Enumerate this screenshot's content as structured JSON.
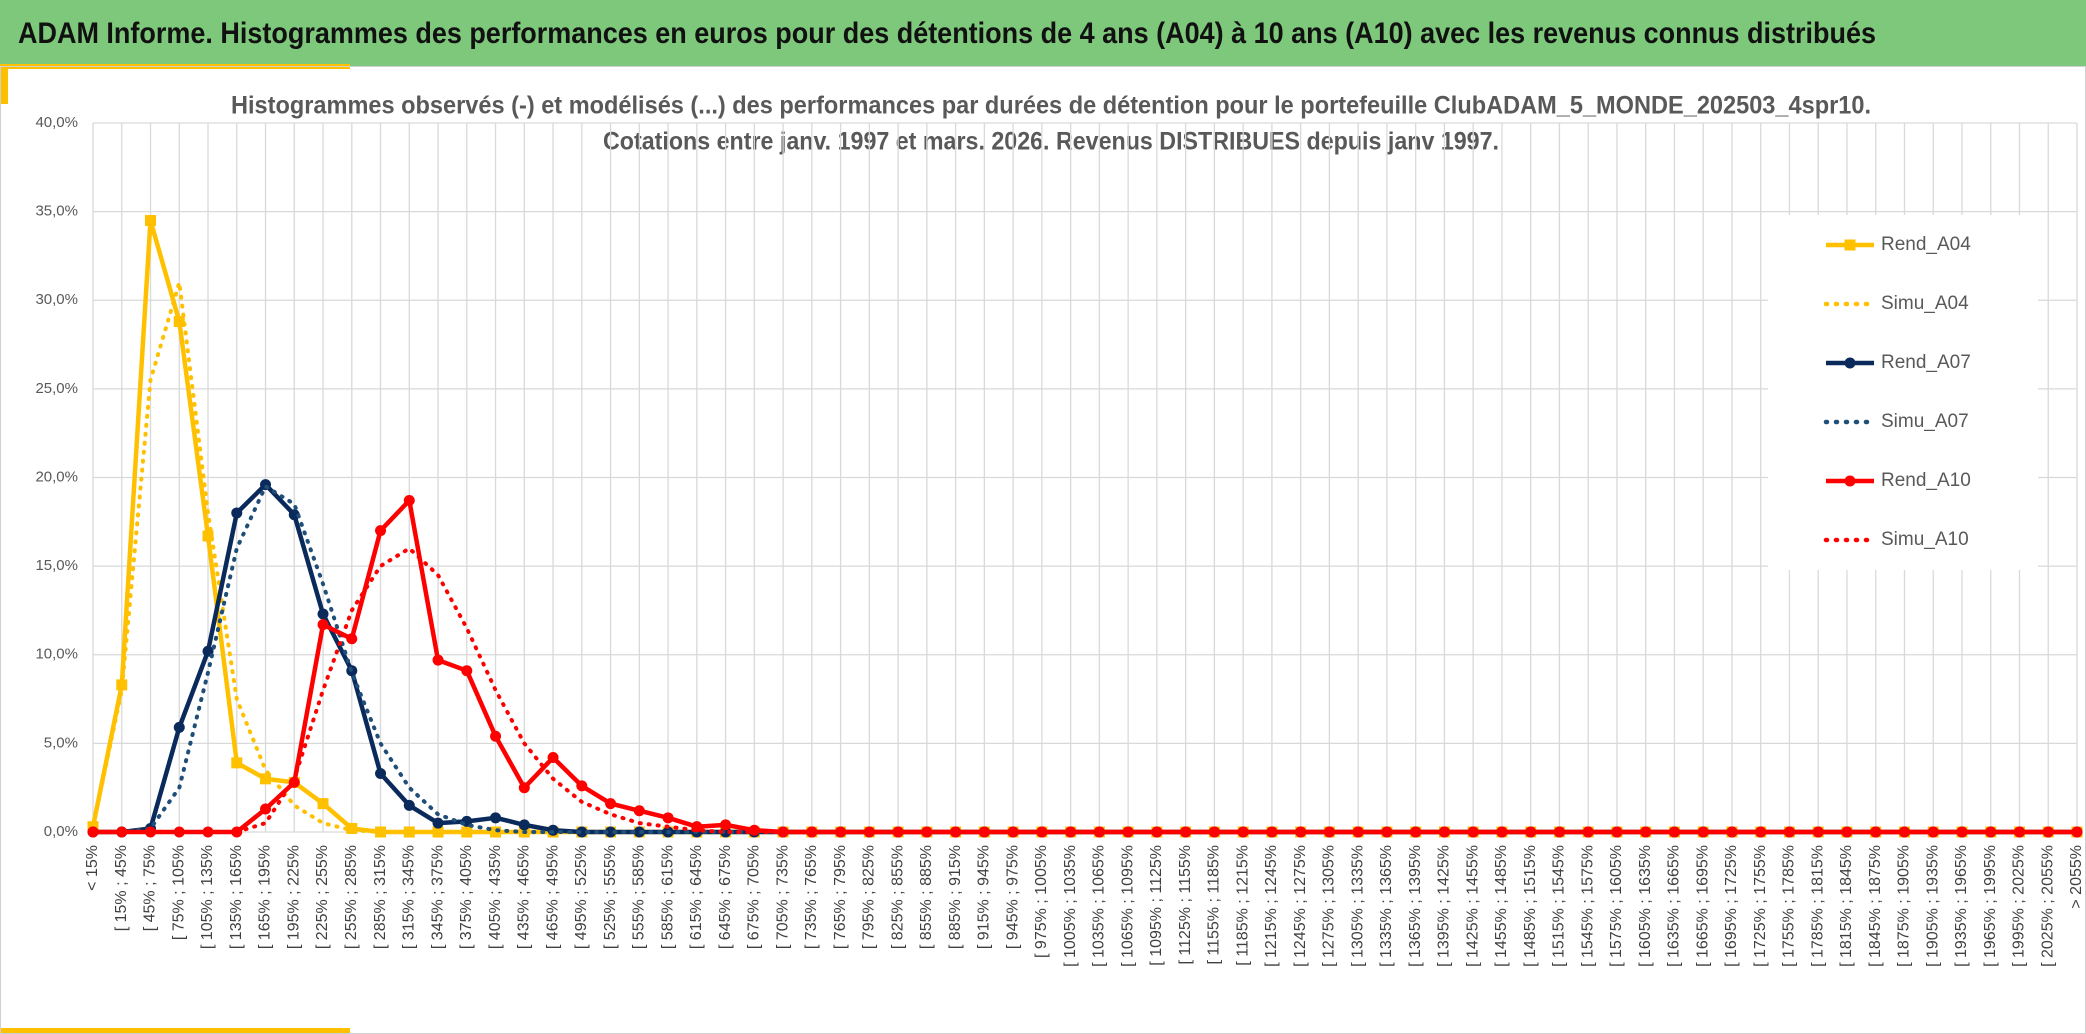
{
  "header": {
    "title": "ADAM Informe. Histogrammes des performances en euros pour des détentions de 4 ans (A04) à 10 ans (A10) avec les revenus connus distribués"
  },
  "chart_data": {
    "type": "line",
    "title": [
      "Histogrammes observés (-) et modélisés (...) des performances par durées de détention pour le portefeuille ClubADAM_5_MONDE_202503_4spr10.",
      "Cotations entre janv. 1997 et mars. 2026. Revenus DISTRIBUES depuis janv 1997."
    ],
    "categories": [
      "< 15%",
      "[ 15% ; 45%",
      "[ 45% ; 75%",
      "[ 75% ; 105%",
      "[ 105% ; 135%",
      "[ 135% ; 165%",
      "[ 165% ; 195%",
      "[ 195% ; 225%",
      "[ 225% ; 255%",
      "[ 255% ; 285%",
      "[ 285% ; 315%",
      "[ 315% ; 345%",
      "[ 345% ; 375%",
      "[ 375% ; 405%",
      "[ 405% ; 435%",
      "[ 435% ; 465%",
      "[ 465% ; 495%",
      "[ 495% ; 525%",
      "[ 525% ; 555%",
      "[ 555% ; 585%",
      "[ 585% ; 615%",
      "[ 615% ; 645%",
      "[ 645% ; 675%",
      "[ 675% ; 705%",
      "[ 705% ; 735%",
      "[ 735% ; 765%",
      "[ 765% ; 795%",
      "[ 795% ; 825%",
      "[ 825% ; 855%",
      "[ 855% ; 885%",
      "[ 885% ; 915%",
      "[ 915% ; 945%",
      "[ 945% ; 975%",
      "[ 975% ; 1005%",
      "[ 1005% ; 1035%",
      "[ 1035% ; 1065%",
      "[ 1065% ; 1095%",
      "[ 1095% ; 1125%",
      "[ 1125% ; 1155%",
      "[ 1155% ; 1185%",
      "[ 1185% ; 1215%",
      "[ 1215% ; 1245%",
      "[ 1245% ; 1275%",
      "[ 1275% ; 1305%",
      "[ 1305% ; 1335%",
      "[ 1335% ; 1365%",
      "[ 1365% ; 1395%",
      "[ 1395% ; 1425%",
      "[ 1425% ; 1455%",
      "[ 1455% ; 1485%",
      "[ 1485% ; 1515%",
      "[ 1515% ; 1545%",
      "[ 1545% ; 1575%",
      "[ 1575% ; 1605%",
      "[ 1605% ; 1635%",
      "[ 1635% ; 1665%",
      "[ 1665% ; 1695%",
      "[ 1695% ; 1725%",
      "[ 1725% ; 1755%",
      "[ 1755% ; 1785%",
      "[ 1785% ; 1815%",
      "[ 1815% ; 1845%",
      "[ 1845% ; 1875%",
      "[ 1875% ; 1905%",
      "[ 1905% ; 1935%",
      "[ 1935% ; 1965%",
      "[ 1965% ; 1995%",
      "[ 1995% ; 2025%",
      "[ 2025% ; 2055%",
      "> 2055%"
    ],
    "series": [
      {
        "name": "Rend_A04",
        "color": "#ffc000",
        "dash": "solid",
        "marker": "square",
        "values": [
          0.3,
          8.3,
          34.5,
          28.8,
          16.7,
          3.9,
          3.0,
          2.8,
          1.6,
          0.2,
          0,
          0,
          0,
          0,
          0,
          0,
          0,
          0,
          0,
          0,
          0,
          0,
          0,
          0,
          0,
          0,
          0,
          0,
          0,
          0,
          0,
          0,
          0,
          0,
          0,
          0,
          0,
          0,
          0,
          0,
          0,
          0,
          0,
          0,
          0,
          0,
          0,
          0,
          0,
          0,
          0,
          0,
          0,
          0,
          0,
          0,
          0,
          0,
          0,
          0,
          0,
          0,
          0,
          0,
          0,
          0,
          0,
          0,
          0,
          0
        ]
      },
      {
        "name": "Simu_A04",
        "color": "#ffc000",
        "dash": "dot",
        "marker": null,
        "values": [
          0.3,
          8.0,
          25.5,
          31.0,
          18.0,
          7.5,
          3.5,
          1.5,
          0.5,
          0.1,
          0,
          0,
          0,
          0,
          0,
          0,
          0,
          0,
          0,
          0,
          0,
          0,
          0,
          0,
          0,
          0,
          0,
          0,
          0,
          0,
          0,
          0,
          0,
          0,
          0,
          0,
          0,
          0,
          0,
          0,
          0,
          0,
          0,
          0,
          0,
          0,
          0,
          0,
          0,
          0,
          0,
          0,
          0,
          0,
          0,
          0,
          0,
          0,
          0,
          0,
          0,
          0,
          0,
          0,
          0,
          0,
          0,
          0,
          0,
          0
        ]
      },
      {
        "name": "Rend_A07",
        "color": "#0b2a5c",
        "dash": "solid",
        "marker": "circle",
        "values": [
          0,
          0,
          0.2,
          5.9,
          10.2,
          18.0,
          19.6,
          17.9,
          12.3,
          9.1,
          3.3,
          1.5,
          0.5,
          0.6,
          0.8,
          0.4,
          0.1,
          0,
          0,
          0,
          0,
          0,
          0,
          0,
          0,
          0,
          0,
          0,
          0,
          0,
          0,
          0,
          0,
          0,
          0,
          0,
          0,
          0,
          0,
          0,
          0,
          0,
          0,
          0,
          0,
          0,
          0,
          0,
          0,
          0,
          0,
          0,
          0,
          0,
          0,
          0,
          0,
          0,
          0,
          0,
          0,
          0,
          0,
          0,
          0,
          0,
          0,
          0,
          0,
          0
        ]
      },
      {
        "name": "Simu_A07",
        "color": "#1f4e79",
        "dash": "dot",
        "marker": null,
        "values": [
          0,
          0,
          0.2,
          2.5,
          9.0,
          16.0,
          19.5,
          18.5,
          14.0,
          9.0,
          5.0,
          2.5,
          1.0,
          0.4,
          0.1,
          0,
          0,
          0,
          0,
          0,
          0,
          0,
          0,
          0,
          0,
          0,
          0,
          0,
          0,
          0,
          0,
          0,
          0,
          0,
          0,
          0,
          0,
          0,
          0,
          0,
          0,
          0,
          0,
          0,
          0,
          0,
          0,
          0,
          0,
          0,
          0,
          0,
          0,
          0,
          0,
          0,
          0,
          0,
          0,
          0,
          0,
          0,
          0,
          0,
          0,
          0,
          0,
          0,
          0,
          0
        ]
      },
      {
        "name": "Rend_A10",
        "color": "#ff0000",
        "dash": "solid",
        "marker": "circle",
        "values": [
          0,
          0,
          0,
          0,
          0,
          0,
          1.3,
          2.8,
          11.7,
          10.9,
          17.0,
          18.7,
          9.7,
          9.1,
          5.4,
          2.5,
          4.2,
          2.6,
          1.6,
          1.2,
          0.8,
          0.3,
          0.4,
          0.1,
          0,
          0,
          0,
          0,
          0,
          0,
          0,
          0,
          0,
          0,
          0,
          0,
          0,
          0,
          0,
          0,
          0,
          0,
          0,
          0,
          0,
          0,
          0,
          0,
          0,
          0,
          0,
          0,
          0,
          0,
          0,
          0,
          0,
          0,
          0,
          0,
          0,
          0,
          0,
          0,
          0,
          0,
          0,
          0,
          0,
          0
        ]
      },
      {
        "name": "Simu_A10",
        "color": "#ff0000",
        "dash": "dot",
        "marker": null,
        "values": [
          0,
          0,
          0,
          0,
          0,
          0,
          0.5,
          3.0,
          8.0,
          12.5,
          15.0,
          16.0,
          14.5,
          11.5,
          8.0,
          5.0,
          3.0,
          1.7,
          1.0,
          0.5,
          0.3,
          0.1,
          0,
          0,
          0,
          0,
          0,
          0,
          0,
          0,
          0,
          0,
          0,
          0,
          0,
          0,
          0,
          0,
          0,
          0,
          0,
          0,
          0,
          0,
          0,
          0,
          0,
          0,
          0,
          0,
          0,
          0,
          0,
          0,
          0,
          0,
          0,
          0,
          0,
          0,
          0,
          0,
          0,
          0,
          0,
          0,
          0,
          0,
          0,
          0
        ]
      }
    ],
    "ylim": [
      0,
      40
    ],
    "yticks": [
      {
        "value": 0,
        "label": "0,0%"
      },
      {
        "value": 5,
        "label": "5,0%"
      },
      {
        "value": 10,
        "label": "10,0%"
      },
      {
        "value": 15,
        "label": "15,0%"
      },
      {
        "value": 20,
        "label": "20,0%"
      },
      {
        "value": 25,
        "label": "25,0%"
      },
      {
        "value": 30,
        "label": "30,0%"
      },
      {
        "value": 35,
        "label": "35,0%"
      },
      {
        "value": 40,
        "label": "40,0%"
      }
    ],
    "grid": true,
    "legend": "right"
  }
}
